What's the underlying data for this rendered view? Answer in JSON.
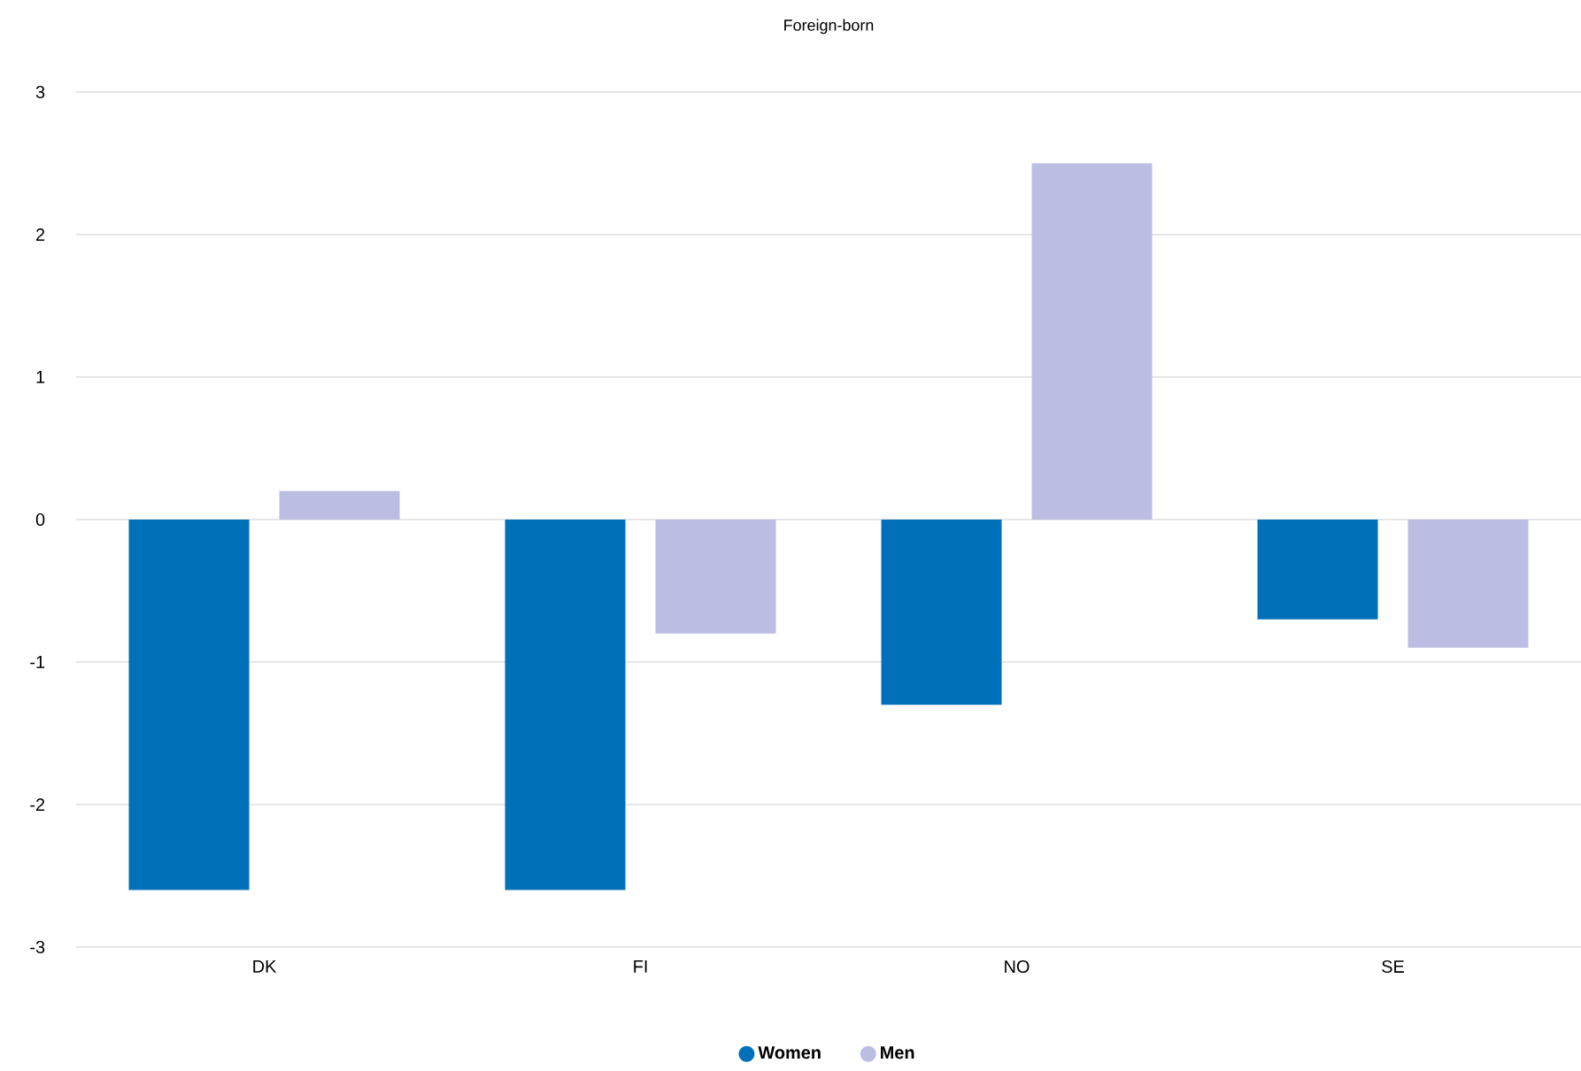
{
  "chart_data": {
    "type": "bar",
    "title": "Foreign-born",
    "categories": [
      "DK",
      "FI",
      "NO",
      "SE"
    ],
    "series": [
      {
        "name": "Women",
        "color": "#0070b8",
        "values": [
          -2.6,
          -2.6,
          -1.3,
          -0.7
        ]
      },
      {
        "name": "Men",
        "color": "#bcbde3",
        "values": [
          0.2,
          -0.8,
          2.5,
          -0.9
        ]
      }
    ],
    "ylim": [
      -3,
      3
    ],
    "yticks": [
      -3,
      -2,
      -1,
      0,
      1,
      2,
      3
    ],
    "grid": "y",
    "legend": "bottom"
  }
}
